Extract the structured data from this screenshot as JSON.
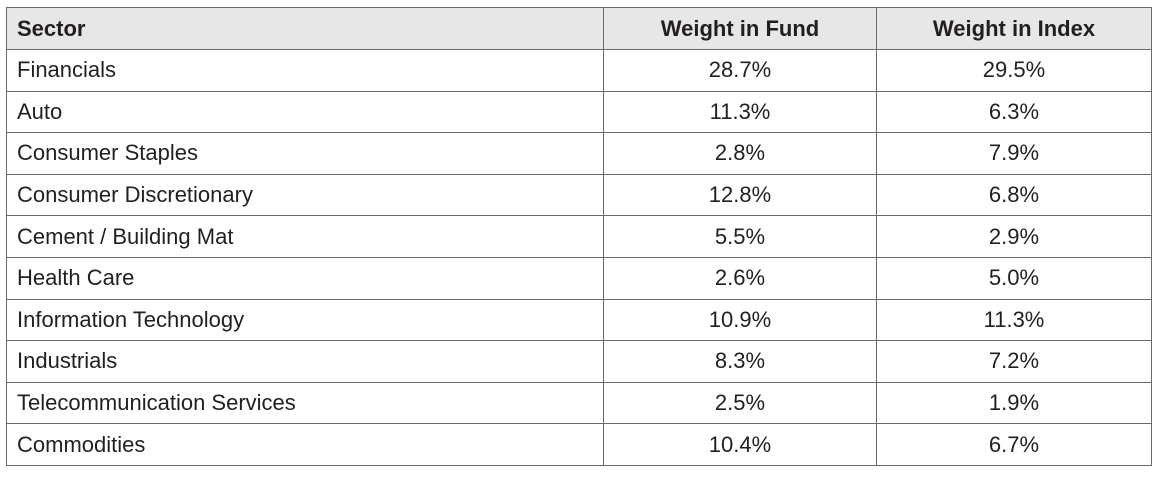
{
  "chart_data": {
    "type": "table",
    "columns": [
      "Sector",
      "Weight in Fund",
      "Weight in Index"
    ],
    "rows": [
      {
        "sector": "Financials",
        "fund": "28.7%",
        "index": "29.5%"
      },
      {
        "sector": "Auto",
        "fund": "11.3%",
        "index": "6.3%"
      },
      {
        "sector": "Consumer Staples",
        "fund": "2.8%",
        "index": "7.9%"
      },
      {
        "sector": "Consumer Discretionary",
        "fund": "12.8%",
        "index": "6.8%"
      },
      {
        "sector": "Cement / Building Mat",
        "fund": "5.5%",
        "index": "2.9%"
      },
      {
        "sector": "Health Care",
        "fund": "2.6%",
        "index": "5.0%"
      },
      {
        "sector": "Information Technology",
        "fund": "10.9%",
        "index": "11.3%"
      },
      {
        "sector": "Industrials",
        "fund": "8.3%",
        "index": "7.2%"
      },
      {
        "sector": "Telecommunication Services",
        "fund": "2.5%",
        "index": "1.9%"
      },
      {
        "sector": "Commodities",
        "fund": "10.4%",
        "index": "6.7%"
      }
    ]
  },
  "colors": {
    "header_background": "#e7e7e8",
    "border": "#6b6b6b",
    "text": "#231f20"
  }
}
